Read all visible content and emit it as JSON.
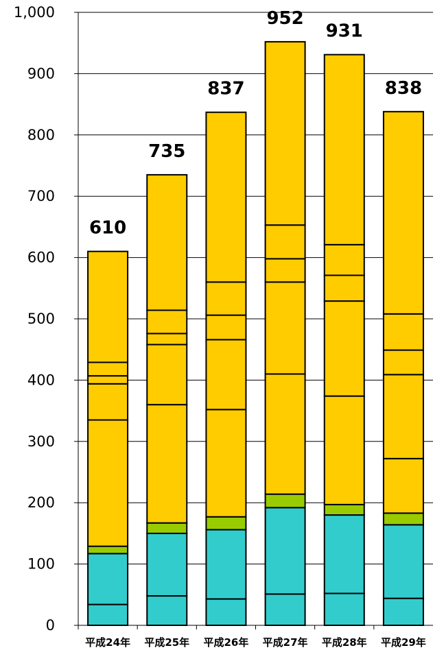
{
  "chart_data": {
    "type": "bar",
    "stacked": true,
    "title": "",
    "xlabel": "",
    "ylabel": "",
    "categories": [
      "平成24年",
      "平成25年",
      "平成26年",
      "平成27年",
      "平成28年",
      "平成29年"
    ],
    "ylim": [
      0,
      1000
    ],
    "yticks": [
      0,
      100,
      200,
      300,
      400,
      500,
      600,
      700,
      800,
      900,
      1000
    ],
    "ytick_labels": [
      "0",
      "100",
      "200",
      "300",
      "400",
      "500",
      "600",
      "700",
      "800",
      "900",
      "1,000"
    ],
    "grid": true,
    "legend": "none",
    "series": [
      {
        "color": "#33cccc",
        "values": [
          34,
          48,
          43,
          51,
          52,
          44
        ]
      },
      {
        "color": "#33cccc",
        "values": [
          83,
          102,
          113,
          141,
          128,
          120
        ]
      },
      {
        "color": "#99cc00",
        "values": [
          12,
          17,
          21,
          22,
          17,
          19
        ]
      },
      {
        "color": "#ffcc00",
        "values": [
          206,
          193,
          175,
          196,
          177,
          89
        ]
      },
      {
        "color": "#ffcc00",
        "values": [
          59,
          98,
          114,
          150,
          155,
          137
        ]
      },
      {
        "color": "#ffcc00",
        "values": [
          13,
          18,
          40,
          38,
          42,
          40
        ]
      },
      {
        "color": "#ffcc00",
        "values": [
          22,
          38,
          54,
          55,
          50,
          59
        ]
      },
      {
        "color": "#ffcc00",
        "values": [
          181,
          221,
          277,
          299,
          310,
          330
        ]
      }
    ],
    "totals": [
      610,
      735,
      837,
      952,
      931,
      838
    ],
    "total_labels": [
      "610",
      "735",
      "837",
      "952",
      "931",
      "838"
    ]
  }
}
